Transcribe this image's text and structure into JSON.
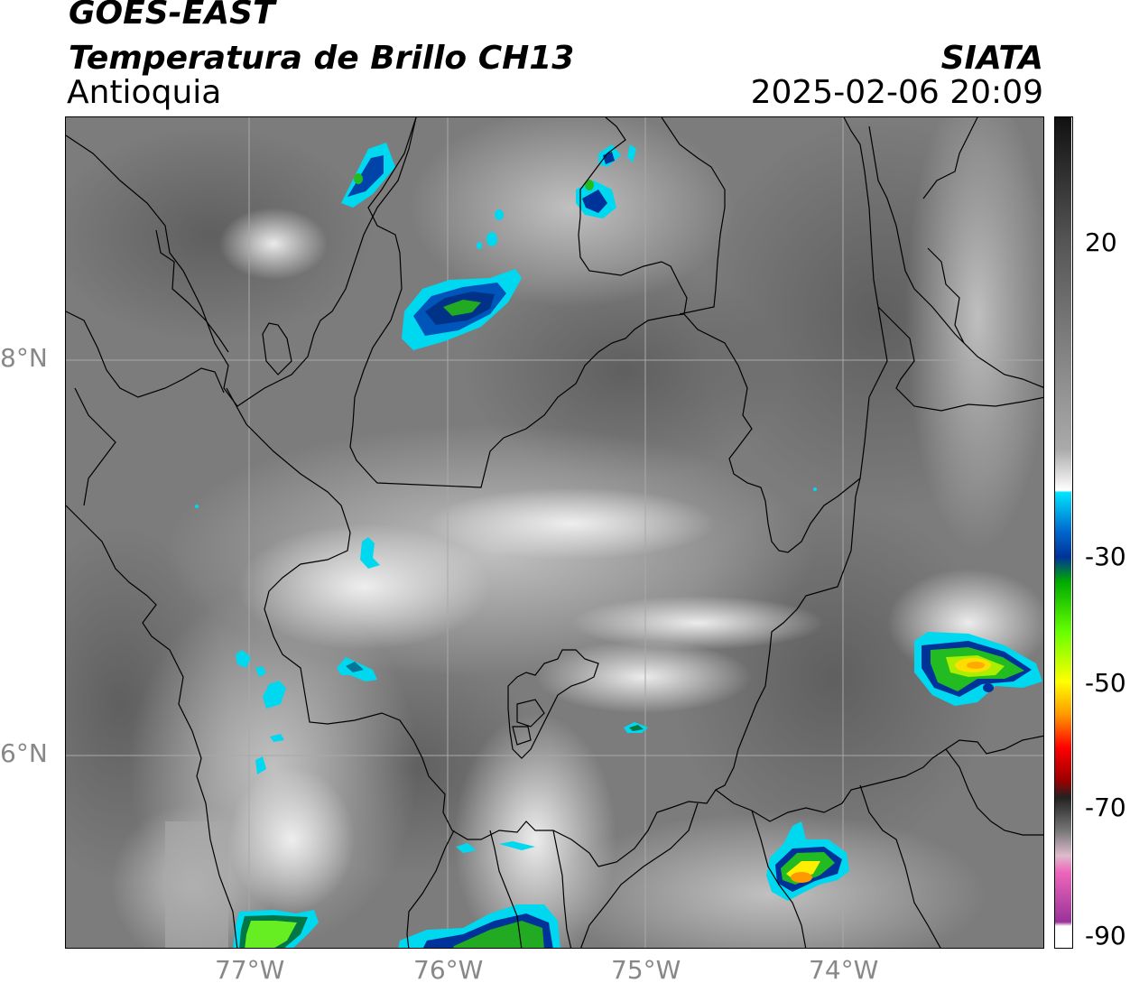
{
  "header": {
    "satellite": "GOES-EAST",
    "product": "Temperatura de Brillo CH13",
    "region": "Antioquia",
    "organization": "SIATA",
    "datetime": "2025-02-06 20:09"
  },
  "map": {
    "lat_labels": [
      "8°N",
      "6°N"
    ],
    "lon_labels": [
      "77°W",
      "76°W",
      "75°W",
      "74°W"
    ],
    "background_gray": "#7a7a7a",
    "gridline_color": "#aaaaaa"
  },
  "colorbar": {
    "tick_labels": [
      "20",
      "-30",
      "-50",
      "-70",
      "-90"
    ],
    "stops": [
      {
        "pos": 0.0,
        "color": "#111111"
      },
      {
        "pos": 0.15,
        "color": "#555555"
      },
      {
        "pos": 0.3,
        "color": "#888888"
      },
      {
        "pos": 0.4,
        "color": "#aaaaaa"
      },
      {
        "pos": 0.45,
        "color": "#ffffff"
      },
      {
        "pos": 0.452,
        "color": "#00e5ff"
      },
      {
        "pos": 0.5,
        "color": "#0066cc"
      },
      {
        "pos": 0.53,
        "color": "#003399"
      },
      {
        "pos": 0.56,
        "color": "#00aa00"
      },
      {
        "pos": 0.62,
        "color": "#66ff00"
      },
      {
        "pos": 0.68,
        "color": "#ffff00"
      },
      {
        "pos": 0.72,
        "color": "#ff9900"
      },
      {
        "pos": 0.76,
        "color": "#ff0000"
      },
      {
        "pos": 0.8,
        "color": "#990000"
      },
      {
        "pos": 0.82,
        "color": "#222222"
      },
      {
        "pos": 0.86,
        "color": "#777777"
      },
      {
        "pos": 0.89,
        "color": "#ddbbcc"
      },
      {
        "pos": 0.91,
        "color": "#ee66bb"
      },
      {
        "pos": 0.97,
        "color": "#993399"
      },
      {
        "pos": 0.975,
        "color": "#ffffff"
      },
      {
        "pos": 1.0,
        "color": "#ffffff"
      }
    ]
  }
}
